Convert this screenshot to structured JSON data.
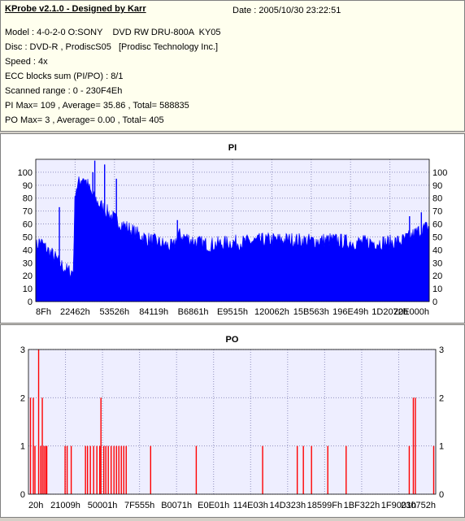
{
  "info": {
    "app_title": "KProbe v2.1.0 - Designed by Karr",
    "date": "Date : 2005/10/30 23:22:51",
    "lines": [
      "Model : 4-0-2-0 O:SONY    DVD RW DRU-800A  KY05",
      "Disc : DVD-R , ProdiscS05   [Prodisc Technology Inc.]",
      "Speed : 4x",
      "ECC blocks sum (PI/PO) : 8/1",
      "Scanned range : 0 - 230F4Eh",
      "PI Max= 109 , Average= 35.86 , Total= 588835",
      "PO Max= 3 , Average= 0.00 , Total= 405"
    ]
  },
  "colors": {
    "pi_fill": "#0000ff",
    "po_bar": "#ff0000",
    "plot_bg": "#eeeeff",
    "grid": "#9090c0",
    "panel_title": "#000080"
  },
  "chart_data": [
    {
      "type": "area",
      "title": "PI",
      "x_tick_labels": [
        "8Fh",
        "22462h",
        "53526h",
        "84119h",
        "B6861h",
        "E9515h",
        "120062h",
        "15B563h",
        "196E49h",
        "1D2072h",
        "20E000h"
      ],
      "ylim": [
        0,
        110
      ],
      "y_ticks": [
        0,
        10,
        20,
        30,
        40,
        50,
        60,
        70,
        80,
        90,
        100
      ],
      "grid": true,
      "x_range": [
        0,
        1
      ],
      "profile_x": [
        0,
        0.01,
        0.03,
        0.05,
        0.06,
        0.08,
        0.095,
        0.1,
        0.11,
        0.12,
        0.13,
        0.14,
        0.15,
        0.16,
        0.18,
        0.2,
        0.22,
        0.25,
        0.28,
        0.31,
        0.33,
        0.35,
        0.36,
        0.38,
        0.41,
        0.44,
        0.47,
        0.5,
        0.53,
        0.56,
        0.6,
        0.65,
        0.7,
        0.75,
        0.8,
        0.85,
        0.9,
        0.93,
        0.95,
        0.97,
        0.99,
        1.0
      ],
      "profile_y": [
        40,
        45,
        38,
        32,
        28,
        22,
        21,
        85,
        90,
        95,
        90,
        82,
        78,
        74,
        68,
        62,
        58,
        52,
        47,
        44,
        42,
        40,
        50,
        48,
        44,
        42,
        43,
        44,
        44,
        45,
        46,
        46,
        45,
        46,
        44,
        44,
        44,
        45,
        48,
        52,
        55,
        56
      ],
      "spikes": [
        {
          "x": 0.06,
          "value": 73
        },
        {
          "x": 0.145,
          "value": 100
        },
        {
          "x": 0.15,
          "value": 109
        },
        {
          "x": 0.175,
          "value": 106
        },
        {
          "x": 0.205,
          "value": 95
        },
        {
          "x": 0.36,
          "value": 63
        },
        {
          "x": 0.95,
          "value": 66
        },
        {
          "x": 0.98,
          "value": 69
        }
      ]
    },
    {
      "type": "bar",
      "title": "PO",
      "x_tick_labels": [
        "20h",
        "21009h",
        "50001h",
        "7F555h",
        "B0071h",
        "E0E01h",
        "114E03h",
        "14D323h",
        "18599Fh",
        "1BF322h",
        "1F9001h",
        "230752h"
      ],
      "ylim": [
        0,
        3
      ],
      "y_ticks": [
        0,
        1,
        2,
        3
      ],
      "grid": true,
      "x_range": [
        0,
        1
      ],
      "bars": [
        {
          "x": 0.005,
          "value": 2
        },
        {
          "x": 0.012,
          "value": 2
        },
        {
          "x": 0.016,
          "value": 1
        },
        {
          "x": 0.025,
          "value": 3
        },
        {
          "x": 0.03,
          "value": 1
        },
        {
          "x": 0.034,
          "value": 2
        },
        {
          "x": 0.038,
          "value": 1
        },
        {
          "x": 0.042,
          "value": 1
        },
        {
          "x": 0.045,
          "value": 1
        },
        {
          "x": 0.09,
          "value": 1
        },
        {
          "x": 0.095,
          "value": 1
        },
        {
          "x": 0.105,
          "value": 1
        },
        {
          "x": 0.14,
          "value": 1
        },
        {
          "x": 0.145,
          "value": 1
        },
        {
          "x": 0.152,
          "value": 1
        },
        {
          "x": 0.16,
          "value": 1
        },
        {
          "x": 0.168,
          "value": 1
        },
        {
          "x": 0.175,
          "value": 1
        },
        {
          "x": 0.178,
          "value": 2
        },
        {
          "x": 0.185,
          "value": 1
        },
        {
          "x": 0.19,
          "value": 1
        },
        {
          "x": 0.196,
          "value": 1
        },
        {
          "x": 0.203,
          "value": 1
        },
        {
          "x": 0.21,
          "value": 1
        },
        {
          "x": 0.216,
          "value": 1
        },
        {
          "x": 0.222,
          "value": 1
        },
        {
          "x": 0.228,
          "value": 1
        },
        {
          "x": 0.234,
          "value": 1
        },
        {
          "x": 0.24,
          "value": 1
        },
        {
          "x": 0.3,
          "value": 1
        },
        {
          "x": 0.412,
          "value": 1
        },
        {
          "x": 0.575,
          "value": 1
        },
        {
          "x": 0.66,
          "value": 1
        },
        {
          "x": 0.675,
          "value": 1
        },
        {
          "x": 0.695,
          "value": 1
        },
        {
          "x": 0.735,
          "value": 1
        },
        {
          "x": 0.78,
          "value": 1
        },
        {
          "x": 0.935,
          "value": 1
        },
        {
          "x": 0.945,
          "value": 2
        },
        {
          "x": 0.95,
          "value": 2
        },
        {
          "x": 0.995,
          "value": 1
        }
      ]
    }
  ]
}
